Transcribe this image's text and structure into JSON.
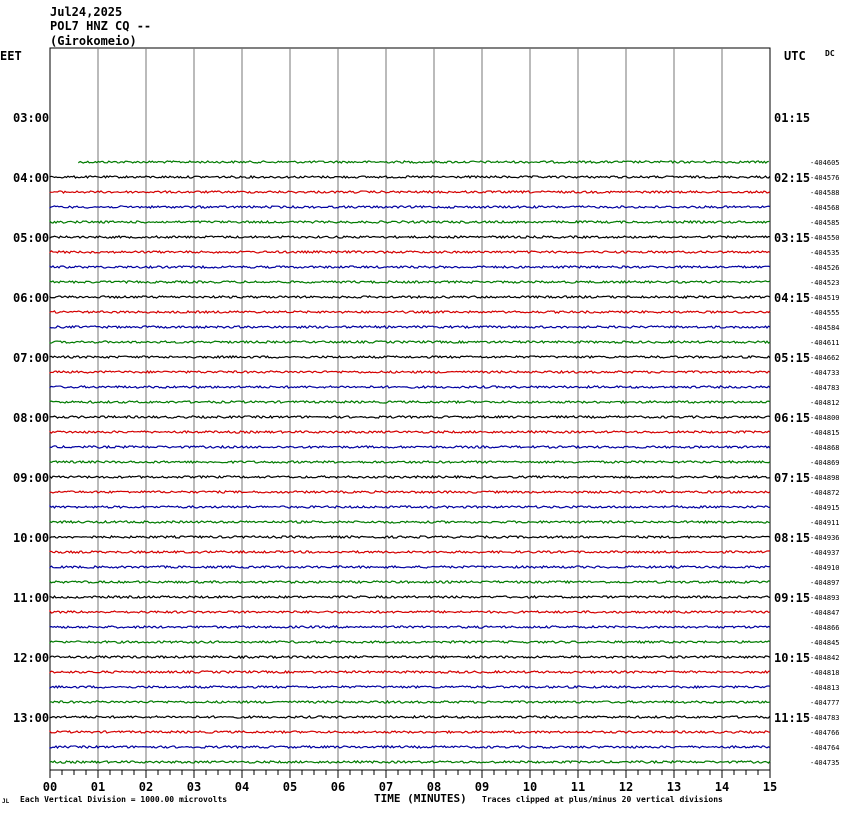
{
  "header": {
    "date": "Jul24,2025",
    "station": "POL7 HNZ CQ --",
    "location": "(Girokomeio)"
  },
  "left_tz": "EET",
  "right_tz": "UTC",
  "dc_label": "DC",
  "footer": {
    "vertical_division": "Each Vertical Division = 1000.00 microvolts",
    "xlabel": "TIME (MINUTES)",
    "clip_note": "Traces clipped at plus/minus 20 vertical divisions",
    "mark": "JL"
  },
  "chart_data": {
    "type": "line",
    "title": "Jul24,2025 POL7 HNZ CQ -- (Girokomeio)",
    "xlabel": "TIME (MINUTES)",
    "xlim": [
      0,
      15
    ],
    "x_ticks": [
      "00",
      "01",
      "02",
      "03",
      "04",
      "05",
      "06",
      "07",
      "08",
      "09",
      "10",
      "11",
      "12",
      "13",
      "14",
      "15"
    ],
    "grid": true,
    "trace_colors": [
      "#000000",
      "#d40000",
      "#0000a0",
      "#007a00"
    ],
    "left_hour_labels": [
      "03:00",
      "04:00",
      "05:00",
      "06:00",
      "07:00",
      "08:00",
      "09:00",
      "10:00",
      "11:00",
      "12:00",
      "13:00"
    ],
    "right_hour_labels": [
      "01:15",
      "02:15",
      "03:15",
      "04:15",
      "05:15",
      "06:15",
      "07:15",
      "08:15",
      "09:15",
      "10:15",
      "11:15"
    ],
    "first_trace_start_minute": 0.6,
    "trace_offsets": [
      -404605,
      -404576,
      -404588,
      -404568,
      -404585,
      -404550,
      -404535,
      -404526,
      -404523,
      -404519,
      -404555,
      -404584,
      -404611,
      -404662,
      -404733,
      -404783,
      -404812,
      -404800,
      -404815,
      -404868,
      -404869,
      -404898,
      -404872,
      -404915,
      -404911,
      -404936,
      -404937,
      -404910,
      -404897,
      -404893,
      -404847,
      -404866,
      -404845,
      -404842,
      -404818,
      -404813,
      -404777,
      -404783,
      -404766,
      -404764,
      -404735
    ]
  }
}
